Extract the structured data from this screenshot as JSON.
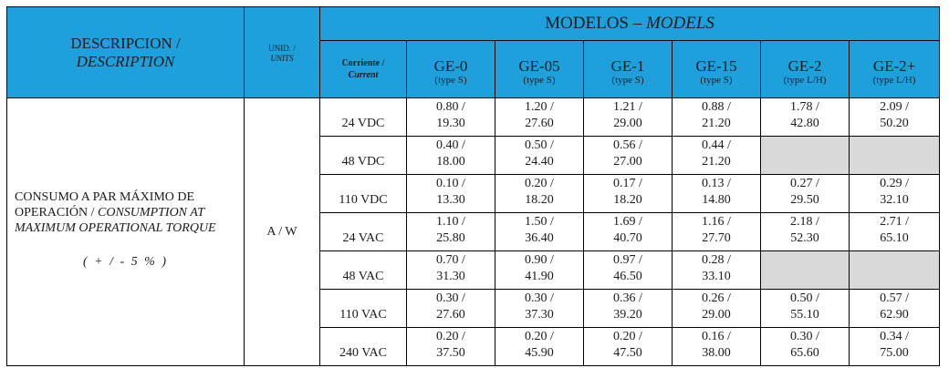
{
  "header": {
    "description_es": "DESCRIPCION /",
    "description_en": "DESCRIPTION",
    "units_es": "UNID. /",
    "units_en": "UNITS",
    "models_es": "MODELOS – ",
    "models_en": "MODELS",
    "current_es": "Corriente /",
    "current_en": "Current",
    "models": [
      {
        "name": "GE-0",
        "type": "(type S)"
      },
      {
        "name": "GE-05",
        "type": "(type S)"
      },
      {
        "name": "GE-1",
        "type": "(type S)"
      },
      {
        "name": "GE-15",
        "type": "(type S)"
      },
      {
        "name": "GE-2",
        "type": "(type L/H)"
      },
      {
        "name": "GE-2+",
        "type": "(type L/H)"
      }
    ]
  },
  "body": {
    "description_es": "CONSUMO A PAR MÁXIMO DE OPERACIÓN / ",
    "description_en": "CONSUMPTION AT MAXIMUM  OPERATIONAL TORQUE",
    "tolerance": "( + / - 5  % )",
    "unit": "A / W",
    "rows": [
      {
        "current": "24 VDC",
        "cells": [
          [
            "0.80 /",
            "19.30"
          ],
          [
            "1.20 /",
            "27.60"
          ],
          [
            "1.21 /",
            "29.00"
          ],
          [
            "0.88 /",
            "21.20"
          ],
          [
            "1.78 /",
            "42.80"
          ],
          [
            "2.09 /",
            "50.20"
          ]
        ]
      },
      {
        "current": "48 VDC",
        "cells": [
          [
            "0.40 /",
            "18.00"
          ],
          [
            "0.50 /",
            "24.40"
          ],
          [
            "0.56 /",
            "27.00"
          ],
          [
            "0.44 /",
            "21.20"
          ],
          null,
          null
        ]
      },
      {
        "current": "110 VDC",
        "cells": [
          [
            "0.10 /",
            "13.30"
          ],
          [
            "0.20 /",
            "18.20"
          ],
          [
            "0.17 /",
            "18.20"
          ],
          [
            "0.13 /",
            "14.80"
          ],
          [
            "0.27 /",
            "29.50"
          ],
          [
            "0.29 /",
            "32.10"
          ]
        ]
      },
      {
        "current": "24 VAC",
        "cells": [
          [
            "1.10 /",
            "25.80"
          ],
          [
            "1.50 /",
            "36.40"
          ],
          [
            "1.69 /",
            "40.70"
          ],
          [
            "1.16 /",
            "27.70"
          ],
          [
            "2.18 /",
            "52.30"
          ],
          [
            "2.71 /",
            "65.10"
          ]
        ]
      },
      {
        "current": "48 VAC",
        "cells": [
          [
            "0.70 /",
            "31.30"
          ],
          [
            "0.90 /",
            "41.90"
          ],
          [
            "0.97 /",
            "46.50"
          ],
          [
            "0.28 /",
            "33.10"
          ],
          null,
          null
        ]
      },
      {
        "current": "110 VAC",
        "cells": [
          [
            "0.30 /",
            "27.60"
          ],
          [
            "0.30 /",
            "37.30"
          ],
          [
            "0.36 /",
            "39.20"
          ],
          [
            "0.26 /",
            "29.00"
          ],
          [
            "0.50 /",
            "55.10"
          ],
          [
            "0.57 /",
            "62.90"
          ]
        ]
      },
      {
        "current": "240 VAC",
        "cells": [
          [
            "0.20 /",
            "37.50"
          ],
          [
            "0.20 /",
            "45.90"
          ],
          [
            "0.20 /",
            "47.50"
          ],
          [
            "0.16 /",
            "38.00"
          ],
          [
            "0.30 /",
            "65.60"
          ],
          [
            "0.34 /",
            "75.00"
          ]
        ]
      }
    ]
  },
  "colors": {
    "header_bg": "#1ea0dc",
    "empty_cell": "#d9d9d9"
  }
}
